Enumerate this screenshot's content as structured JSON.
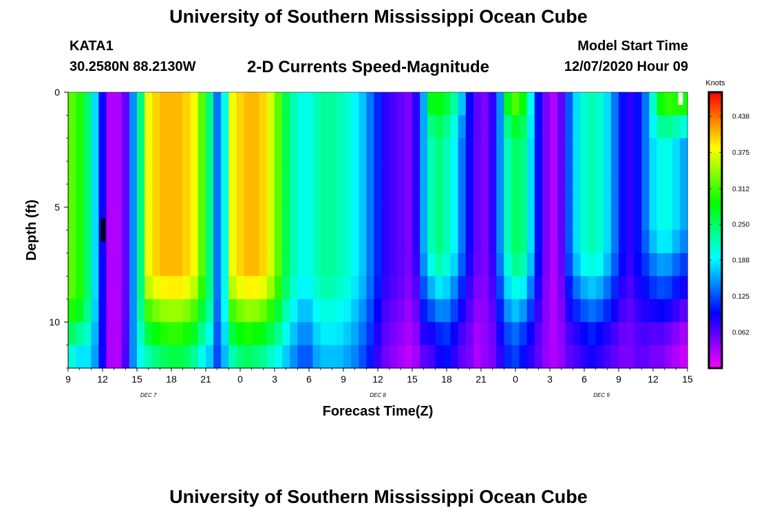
{
  "page": {
    "title_top": "University of Southern Mississippi Ocean Cube",
    "title_bottom": "University of Southern Mississippi Ocean Cube",
    "station": "KATA1",
    "latlon": "30.2580N 88.2130W",
    "subtitle": "2-D Currents Speed-Magnitude",
    "model_label": "Model Start Time",
    "model_date": "12/07/2020 Hour 09"
  },
  "chart_data": {
    "type": "heatmap",
    "xlabel": "Forecast Time(Z)",
    "ylabel": "Depth (ft)",
    "x_range_hours": [
      0,
      54
    ],
    "y_range_ft": [
      0,
      12
    ],
    "x_tick_labels": [
      "9",
      "12",
      "15",
      "18",
      "21",
      "0",
      "3",
      "6",
      "9",
      "12",
      "15",
      "18",
      "21",
      "0",
      "3",
      "6",
      "9",
      "12",
      "15"
    ],
    "y_tick_labels": [
      "0",
      "5",
      "10"
    ],
    "y_tick_values": [
      0,
      5,
      10
    ],
    "day_labels": [
      {
        "text": "DEC 7",
        "hour": 7
      },
      {
        "text": "DEC 8",
        "hour": 27
      },
      {
        "text": "DEC 9",
        "hour": 46.5
      }
    ],
    "colorbar": {
      "label": "Knots",
      "range": [
        0,
        0.48
      ],
      "tick_labels": [
        "0.438",
        "0.375",
        "0.312",
        "0.250",
        "0.188",
        "0.125",
        "0.062"
      ],
      "tick_values": [
        0.438,
        0.375,
        0.312,
        0.25,
        0.188,
        0.125,
        0.062
      ]
    },
    "depth_levels_ft": [
      0.5,
      1.5,
      2.5,
      3.5,
      4.5,
      5.5,
      6.5,
      7.5,
      8.5,
      9.5,
      10.5,
      11.5
    ],
    "profile_keys": [
      "peak",
      "surface",
      "bottom",
      "decay_start",
      "decay_end"
    ],
    "column_profiles": [
      [
        0.32,
        0.32,
        0.18,
        9,
        12
      ],
      [
        0.3,
        0.3,
        0.16,
        9,
        12
      ],
      [
        0.25,
        0.25,
        0.17,
        9,
        12
      ],
      [
        0.18,
        0.18,
        0.15,
        9,
        12
      ],
      [
        0.09,
        0.09,
        0.09,
        9,
        12
      ],
      [
        0.03,
        0.03,
        0.03,
        9,
        12
      ],
      [
        0.03,
        0.03,
        0.03,
        9,
        12
      ],
      [
        0.06,
        0.06,
        0.07,
        9,
        12
      ],
      [
        0.15,
        0.15,
        0.15,
        9,
        12
      ],
      [
        0.24,
        0.24,
        0.19,
        9,
        12
      ],
      [
        0.38,
        0.38,
        0.2,
        8,
        12
      ],
      [
        0.4,
        0.4,
        0.22,
        8,
        12
      ],
      [
        0.41,
        0.41,
        0.23,
        8,
        12
      ],
      [
        0.41,
        0.41,
        0.24,
        8,
        12
      ],
      [
        0.41,
        0.41,
        0.24,
        8,
        12
      ],
      [
        0.4,
        0.4,
        0.23,
        8,
        12
      ],
      [
        0.38,
        0.38,
        0.21,
        8,
        12
      ],
      [
        0.32,
        0.32,
        0.18,
        8,
        12
      ],
      [
        0.24,
        0.24,
        0.16,
        9,
        12
      ],
      [
        0.14,
        0.14,
        0.12,
        9,
        12
      ],
      [
        0.2,
        0.2,
        0.16,
        9,
        12
      ],
      [
        0.38,
        0.38,
        0.2,
        8,
        12
      ],
      [
        0.4,
        0.4,
        0.22,
        8,
        12
      ],
      [
        0.41,
        0.41,
        0.23,
        8,
        12
      ],
      [
        0.41,
        0.41,
        0.22,
        8,
        12
      ],
      [
        0.4,
        0.4,
        0.21,
        8,
        12
      ],
      [
        0.37,
        0.37,
        0.19,
        8,
        12
      ],
      [
        0.32,
        0.32,
        0.18,
        8,
        12
      ],
      [
        0.26,
        0.26,
        0.16,
        8,
        12
      ],
      [
        0.22,
        0.22,
        0.14,
        8,
        12
      ],
      [
        0.2,
        0.2,
        0.12,
        8,
        12
      ],
      [
        0.2,
        0.2,
        0.12,
        8,
        12
      ],
      [
        0.22,
        0.22,
        0.15,
        8,
        12
      ],
      [
        0.23,
        0.23,
        0.16,
        8,
        12
      ],
      [
        0.23,
        0.23,
        0.16,
        8,
        12
      ],
      [
        0.22,
        0.22,
        0.16,
        8,
        12
      ],
      [
        0.21,
        0.21,
        0.15,
        8,
        12
      ],
      [
        0.19,
        0.19,
        0.14,
        8,
        12
      ],
      [
        0.17,
        0.17,
        0.12,
        8,
        12
      ],
      [
        0.14,
        0.14,
        0.1,
        8,
        12
      ],
      [
        0.11,
        0.11,
        0.07,
        8,
        12
      ],
      [
        0.08,
        0.08,
        0.05,
        8,
        12
      ],
      [
        0.07,
        0.07,
        0.04,
        8,
        12
      ],
      [
        0.06,
        0.06,
        0.03,
        8,
        12
      ],
      [
        0.05,
        0.05,
        0.02,
        8,
        12
      ],
      [
        0.08,
        0.08,
        0.03,
        7,
        12
      ],
      [
        0.16,
        0.16,
        0.05,
        7,
        12
      ],
      [
        0.22,
        0.3,
        0.07,
        7,
        11
      ],
      [
        0.24,
        0.3,
        0.09,
        7,
        11
      ],
      [
        0.22,
        0.28,
        0.1,
        7,
        11
      ],
      [
        0.19,
        0.24,
        0.08,
        7,
        11
      ],
      [
        0.14,
        0.18,
        0.06,
        7,
        11
      ],
      [
        0.09,
        0.1,
        0.05,
        7,
        11
      ],
      [
        0.06,
        0.06,
        0.03,
        7,
        11
      ],
      [
        0.05,
        0.05,
        0.04,
        7,
        11
      ],
      [
        0.08,
        0.08,
        0.05,
        7,
        11
      ],
      [
        0.15,
        0.15,
        0.08,
        7,
        11
      ],
      [
        0.22,
        0.3,
        0.11,
        7,
        11
      ],
      [
        0.25,
        0.34,
        0.12,
        7,
        11
      ],
      [
        0.24,
        0.3,
        0.1,
        7,
        11
      ],
      [
        0.18,
        0.2,
        0.08,
        7,
        11
      ],
      [
        0.1,
        0.1,
        0.06,
        7,
        11
      ],
      [
        0.05,
        0.05,
        0.04,
        7,
        11
      ],
      [
        0.03,
        0.03,
        0.03,
        7,
        11
      ],
      [
        0.06,
        0.06,
        0.04,
        7,
        11
      ],
      [
        0.13,
        0.13,
        0.06,
        7,
        11
      ],
      [
        0.18,
        0.18,
        0.07,
        7,
        11
      ],
      [
        0.21,
        0.21,
        0.08,
        7,
        11
      ],
      [
        0.22,
        0.22,
        0.09,
        7,
        11
      ],
      [
        0.21,
        0.21,
        0.08,
        7,
        11
      ],
      [
        0.18,
        0.18,
        0.07,
        7,
        11
      ],
      [
        0.14,
        0.14,
        0.06,
        7,
        11
      ],
      [
        0.1,
        0.1,
        0.05,
        7,
        11
      ],
      [
        0.08,
        0.08,
        0.05,
        7,
        11
      ],
      [
        0.1,
        0.1,
        0.06,
        7,
        11
      ],
      [
        0.14,
        0.14,
        0.06,
        6,
        11
      ],
      [
        0.18,
        0.22,
        0.05,
        6,
        11
      ],
      [
        0.2,
        0.32,
        0.05,
        6,
        11
      ],
      [
        0.2,
        0.34,
        0.04,
        6,
        11
      ],
      [
        0.18,
        0.34,
        0.03,
        6,
        11
      ],
      [
        0.16,
        0.34,
        0.02,
        6,
        11
      ]
    ]
  }
}
